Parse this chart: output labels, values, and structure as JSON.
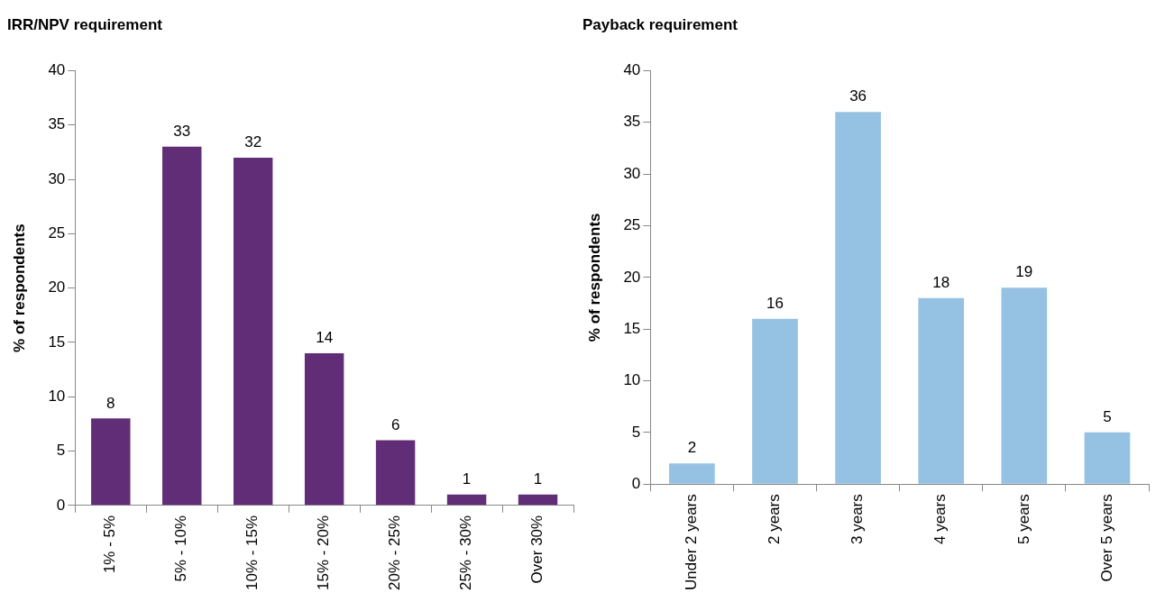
{
  "chart_data": [
    {
      "type": "bar",
      "title": "IRR/NPV requirement",
      "ylabel": "% of respondents",
      "categories": [
        "1% - 5%",
        "5% - 10%",
        "10% - 15%",
        "15% - 20%",
        "20% - 25%",
        "25% - 30%",
        "Over 30%"
      ],
      "values": [
        8,
        33,
        32,
        14,
        6,
        1,
        1
      ],
      "color": "#622d77",
      "ylim": [
        0,
        40
      ],
      "yticks": [
        0,
        5,
        10,
        15,
        20,
        25,
        30,
        35,
        40
      ],
      "grid": false,
      "legend": false,
      "data_labels": true
    },
    {
      "type": "bar",
      "title": "Payback requirement",
      "ylabel": "% of respondents",
      "categories": [
        "Under 2 years",
        "2 years",
        "3 years",
        "4 years",
        "5 years",
        "Over 5 years"
      ],
      "values": [
        2,
        16,
        36,
        18,
        19,
        5
      ],
      "color": "#95c2e3",
      "ylim": [
        0,
        40
      ],
      "yticks": [
        0,
        5,
        10,
        15,
        20,
        25,
        30,
        35,
        40
      ],
      "grid": false,
      "legend": false,
      "data_labels": true
    }
  ]
}
